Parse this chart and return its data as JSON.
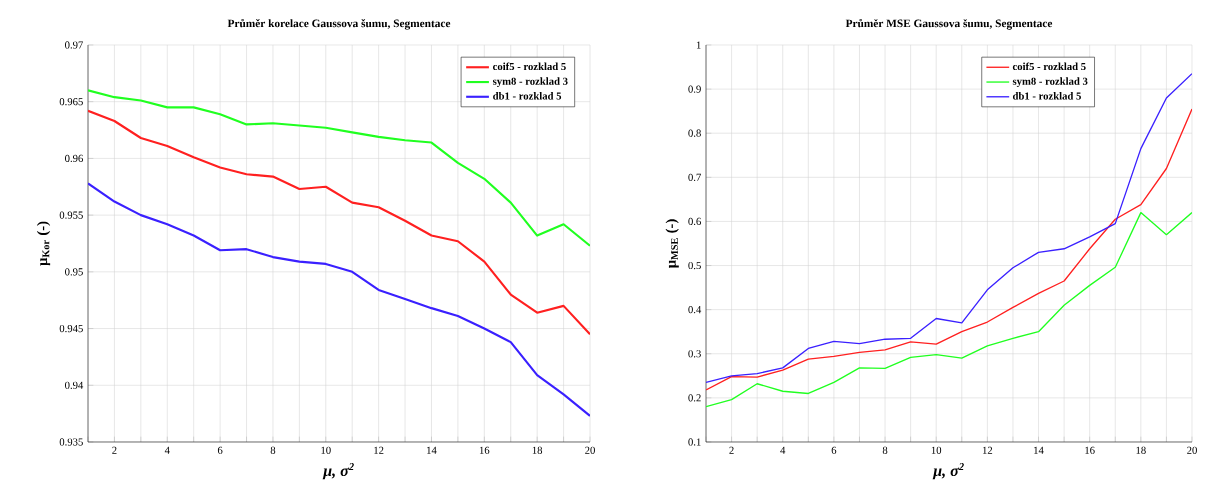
{
  "chart_data": [
    {
      "type": "line",
      "title": "Průměr korelace Gaussova šumu, Segmentace",
      "xlabel": "μ, σ$^{2}$",
      "ylabel": "μ$_{Kor}$   (-)",
      "x": [
        1,
        2,
        3,
        4,
        5,
        6,
        7,
        8,
        9,
        10,
        11,
        12,
        13,
        14,
        15,
        16,
        17,
        18,
        19,
        20
      ],
      "series": [
        {
          "name": "coif5 - rozklad 5",
          "color": "#ff2020",
          "values": [
            0.9642,
            0.9633,
            0.9618,
            0.9611,
            0.9601,
            0.9592,
            0.9586,
            0.9584,
            0.9573,
            0.9575,
            0.9561,
            0.9557,
            0.9545,
            0.9532,
            0.9527,
            0.9509,
            0.948,
            0.9464,
            0.947,
            0.9445
          ]
        },
        {
          "name": "sym8 - rozklad 3",
          "color": "#20ff20",
          "values": [
            0.966,
            0.9654,
            0.9651,
            0.9645,
            0.9645,
            0.9639,
            0.963,
            0.9631,
            0.9629,
            0.9627,
            0.9623,
            0.9619,
            0.9616,
            0.9614,
            0.9596,
            0.9582,
            0.9561,
            0.9532,
            0.9542,
            0.9523
          ]
        },
        {
          "name": "db1 - rozklad 5",
          "color": "#3a20ff",
          "values": [
            0.9578,
            0.9562,
            0.955,
            0.9542,
            0.9532,
            0.9519,
            0.952,
            0.9513,
            0.9509,
            0.9507,
            0.95,
            0.9484,
            0.9476,
            0.9468,
            0.9461,
            0.945,
            0.9438,
            0.9409,
            0.9392,
            0.9373
          ]
        }
      ],
      "xlim": [
        1,
        20
      ],
      "ylim": [
        0.935,
        0.97
      ],
      "xticks": [
        {
          "value": 1,
          "label": null
        },
        2,
        {
          "value": 3,
          "label": null
        },
        4,
        {
          "value": 5,
          "label": null
        },
        6,
        {
          "value": 7,
          "label": null
        },
        8,
        {
          "value": 9,
          "label": null
        },
        10,
        {
          "value": 11,
          "label": null
        },
        12,
        {
          "value": 13,
          "label": null
        },
        14,
        {
          "value": 15,
          "label": null
        },
        16,
        {
          "value": 17,
          "label": null
        },
        18,
        {
          "value": 19,
          "label": null
        },
        20
      ],
      "yticks": [
        0.935,
        0.94,
        0.945,
        0.95,
        0.955,
        0.96,
        0.965,
        0.97
      ],
      "grid": true,
      "legend": "top right",
      "line_style": "solid",
      "marker": "none"
    },
    {
      "type": "line",
      "title": "Průměr MSE Gaussova šumu, Segmentace",
      "xlabel": "μ, σ$^{2}$",
      "ylabel": "μ$_{MSE}$   (-)",
      "x": [
        1,
        2,
        3,
        4,
        5,
        6,
        7,
        8,
        9,
        10,
        11,
        12,
        13,
        14,
        15,
        16,
        17,
        18,
        19,
        20
      ],
      "series": [
        {
          "name": "coif5 - rozklad 5",
          "color": "#ff2020",
          "values": [
            0.218,
            0.248,
            0.247,
            0.263,
            0.288,
            0.294,
            0.303,
            0.309,
            0.327,
            0.322,
            0.35,
            0.372,
            0.405,
            0.437,
            0.465,
            0.538,
            0.605,
            0.638,
            0.72,
            0.855
          ]
        },
        {
          "name": "sym8 - rozklad 3",
          "color": "#20ff20",
          "values": [
            0.18,
            0.196,
            0.232,
            0.215,
            0.21,
            0.235,
            0.268,
            0.267,
            0.292,
            0.298,
            0.29,
            0.318,
            0.335,
            0.35,
            0.41,
            0.455,
            0.496,
            0.62,
            0.57,
            0.62
          ]
        },
        {
          "name": "db1 - rozklad 5",
          "color": "#3a20ff",
          "values": [
            0.235,
            0.25,
            0.255,
            0.268,
            0.312,
            0.328,
            0.323,
            0.333,
            0.335,
            0.38,
            0.37,
            0.445,
            0.495,
            0.53,
            0.538,
            0.565,
            0.595,
            0.765,
            0.88,
            0.935
          ]
        }
      ],
      "xlim": [
        1,
        20
      ],
      "ylim": [
        0.1,
        1
      ],
      "xticks": [
        {
          "value": 1,
          "label": null
        },
        2,
        {
          "value": 3,
          "label": null
        },
        4,
        {
          "value": 5,
          "label": null
        },
        6,
        {
          "value": 7,
          "label": null
        },
        8,
        {
          "value": 9,
          "label": null
        },
        10,
        {
          "value": 11,
          "label": null
        },
        12,
        {
          "value": 13,
          "label": null
        },
        14,
        {
          "value": 15,
          "label": null
        },
        16,
        {
          "value": 17,
          "label": null
        },
        18,
        {
          "value": 19,
          "label": null
        },
        20
      ],
      "yticks": [
        0.1,
        0.2,
        0.3,
        0.4,
        0.5,
        0.6,
        0.7,
        0.8,
        0.9,
        1
      ],
      "grid": true,
      "legend": "top right",
      "line_style": "solid",
      "marker": "none"
    }
  ]
}
